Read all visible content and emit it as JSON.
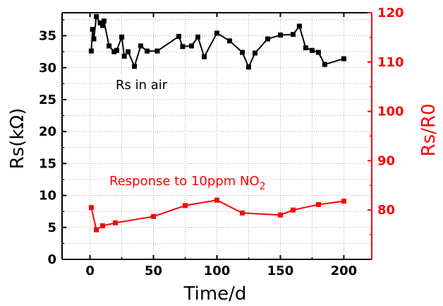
{
  "chart_data": {
    "type": "line",
    "title": "",
    "xlabel": "Time/d",
    "ylabel_left": "Rs(kΩ)",
    "ylabel_right": "Rs/R0",
    "xlim": [
      -22,
      222
    ],
    "ylim_left": [
      0,
      38.6
    ],
    "ylim_right": [
      70,
      120
    ],
    "x_ticks": [
      "0",
      "50",
      "100",
      "150",
      "200"
    ],
    "y_left_ticks": [
      "0",
      "5",
      "10",
      "15",
      "20",
      "25",
      "30",
      "35"
    ],
    "y_right_ticks": [
      "80",
      "90",
      "100",
      "110",
      "120"
    ],
    "grid": true,
    "annotations": [
      {
        "text": "Rs in air",
        "color": "#000000"
      },
      {
        "text": "Response to 10ppm NO",
        "subscript": "2",
        "color": "#ff0000"
      }
    ],
    "colors": {
      "left_axis": "#000000",
      "right_axis": "#ff0000"
    },
    "series": [
      {
        "axis": "left",
        "color": "#000000",
        "marker": "square",
        "x": [
          1,
          2,
          3,
          5,
          8,
          10,
          11,
          15,
          19,
          21,
          25,
          27,
          30,
          35,
          40,
          45,
          53,
          70,
          73,
          80,
          85,
          90,
          100,
          110,
          120,
          125,
          130,
          140,
          150,
          160,
          165,
          170,
          175,
          180,
          185,
          200
        ],
        "y": [
          32.6,
          36.0,
          34.5,
          38.0,
          37.0,
          36.6,
          37.3,
          33.4,
          32.5,
          32.7,
          34.8,
          31.8,
          32.5,
          30.2,
          33.4,
          32.6,
          32.6,
          34.9,
          33.3,
          33.4,
          34.8,
          31.7,
          35.4,
          34.2,
          32.4,
          30.1,
          32.3,
          34.5,
          35.1,
          35.2,
          36.5,
          33.1,
          32.7,
          32.4,
          30.5,
          31.4
        ]
      },
      {
        "axis": "right",
        "color": "#ff0000",
        "marker": "square",
        "x": [
          1,
          5,
          10,
          20,
          50,
          75,
          100,
          120,
          150,
          160,
          180,
          200
        ],
        "y": [
          80.5,
          76.0,
          76.8,
          77.4,
          78.7,
          80.9,
          82.0,
          79.4,
          79.0,
          80.0,
          81.1,
          81.8
        ]
      }
    ]
  }
}
